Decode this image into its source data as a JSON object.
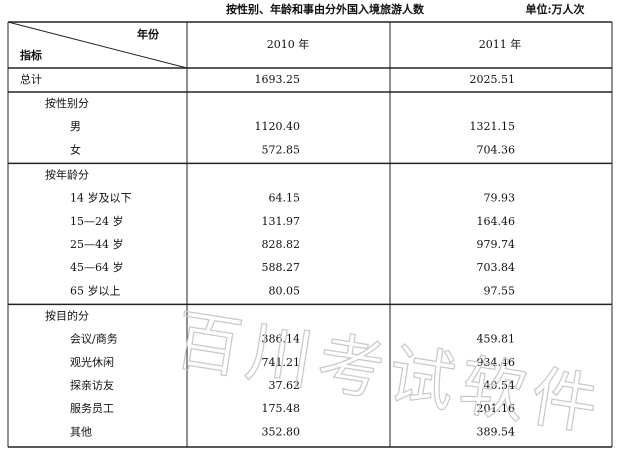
{
  "title": "按性别、年龄和事由分外国入境旅游人数",
  "unit": "单位:万人次",
  "watermark": "百川考试软件",
  "table": {
    "header": {
      "year_label": "年份",
      "indicator_label": "指标",
      "columns": [
        "2010 年",
        "2011 年"
      ]
    },
    "total": {
      "label": "总计",
      "values": [
        "1693.25",
        "2025.51"
      ]
    },
    "sections": [
      {
        "title": "按性别分",
        "rows": [
          {
            "label": "男",
            "values": [
              "1120.40",
              "1321.15"
            ]
          },
          {
            "label": "女",
            "values": [
              "572.85",
              "704.36"
            ]
          }
        ]
      },
      {
        "title": "按年龄分",
        "rows": [
          {
            "label": "14 岁及以下",
            "values": [
              "64.15",
              "79.93"
            ]
          },
          {
            "label": "15—24 岁",
            "values": [
              "131.97",
              "164.46"
            ]
          },
          {
            "label": "25—44 岁",
            "values": [
              "828.82",
              "979.74"
            ]
          },
          {
            "label": "45—64 岁",
            "values": [
              "588.27",
              "703.84"
            ]
          },
          {
            "label": "65 岁以上",
            "values": [
              "80.05",
              "97.55"
            ]
          }
        ]
      },
      {
        "title": "按目的分",
        "rows": [
          {
            "label": "会议/商务",
            "values": [
              "386.14",
              "459.81"
            ]
          },
          {
            "label": "观光休闲",
            "values": [
              "741.21",
              "934.46"
            ]
          },
          {
            "label": "探亲访友",
            "values": [
              "37.62",
              "40.54"
            ]
          },
          {
            "label": "服务员工",
            "values": [
              "175.48",
              "201.16"
            ]
          },
          {
            "label": "其他",
            "values": [
              "352.80",
              "389.54"
            ]
          }
        ]
      }
    ]
  }
}
